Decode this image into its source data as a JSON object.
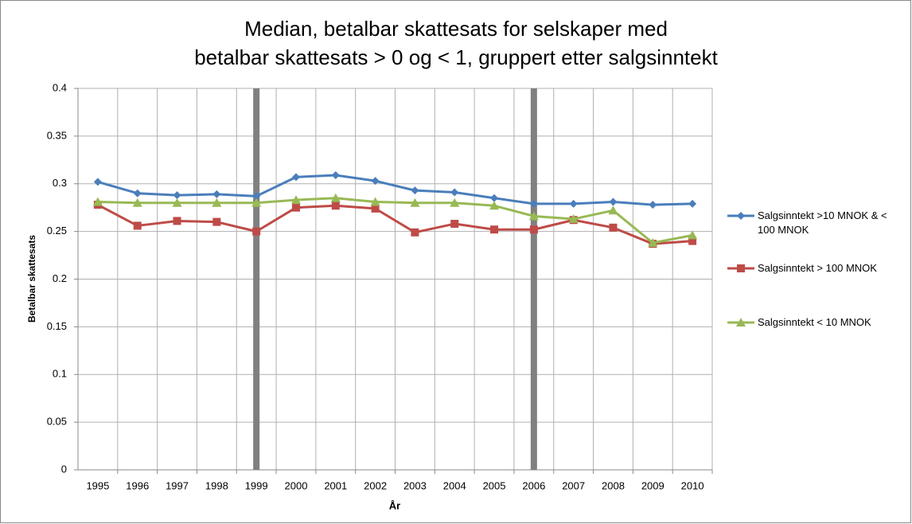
{
  "chart_data": {
    "type": "line",
    "title": [
      "Median, betalbar skattesats for selskaper med",
      "betalbar skattesats > 0 og < 1, gruppert etter salgsinntekt"
    ],
    "x_label": "År",
    "y_label": "Betalbar skattesats",
    "categories": [
      "1995",
      "1996",
      "1997",
      "1998",
      "1999",
      "2000",
      "2001",
      "2002",
      "2003",
      "2004",
      "2005",
      "2006",
      "2007",
      "2008",
      "2009",
      "2010"
    ],
    "series": [
      {
        "name": "Salgsinntekt >10 MNOK & < 100 MNOK",
        "color": "#4a7ebb",
        "marker": "diamond",
        "values": [
          0.302,
          0.29,
          0.288,
          0.289,
          0.287,
          0.307,
          0.309,
          0.303,
          0.293,
          0.291,
          0.285,
          0.279,
          0.279,
          0.281,
          0.278,
          0.279
        ]
      },
      {
        "name": "Salgsinntekt > 100 MNOK",
        "color": "#be4b48",
        "marker": "square",
        "values": [
          0.278,
          0.256,
          0.261,
          0.26,
          0.25,
          0.275,
          0.277,
          0.274,
          0.249,
          0.258,
          0.252,
          0.252,
          0.262,
          0.254,
          0.237,
          0.24
        ]
      },
      {
        "name": "Salgsinntekt < 10 MNOK",
        "color": "#98b954",
        "marker": "triangle",
        "values": [
          0.281,
          0.28,
          0.28,
          0.28,
          0.28,
          0.283,
          0.285,
          0.281,
          0.28,
          0.28,
          0.277,
          0.266,
          0.263,
          0.272,
          0.238,
          0.246
        ]
      }
    ],
    "ylim": [
      0,
      0.4
    ],
    "yticks": [
      0,
      0.05,
      0.1,
      0.15,
      0.2,
      0.25,
      0.3,
      0.35,
      0.4
    ],
    "grid": true,
    "highlight_categories": [
      "1999",
      "2006"
    ],
    "highlight_color": "#808080",
    "legend": "right"
  }
}
